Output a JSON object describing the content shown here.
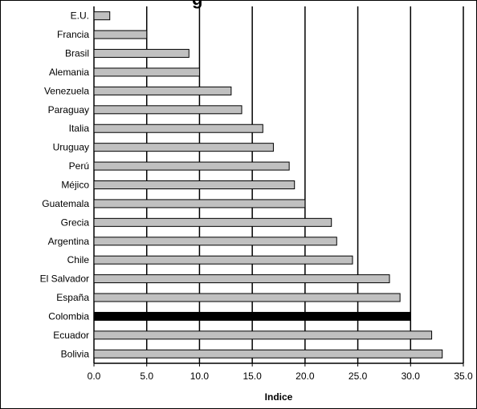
{
  "title_fragment": "g",
  "chart_data": {
    "type": "bar",
    "orientation": "horizontal",
    "categories": [
      "E.U.",
      "Francia",
      "Brasil",
      "Alemania",
      "Venezuela",
      "Paraguay",
      "Italia",
      "Uruguay",
      "Perú",
      "Méjico",
      "Guatemala",
      "Grecia",
      "Argentina",
      "Chile",
      "El Salvador",
      "España",
      "Colombia",
      "Ecuador",
      "Bolivia"
    ],
    "values": [
      1.5,
      5.0,
      9.0,
      10.0,
      13.0,
      14.0,
      16.0,
      17.0,
      18.5,
      19.0,
      20.0,
      22.5,
      23.0,
      24.5,
      28.0,
      29.0,
      30.0,
      32.0,
      33.0
    ],
    "highlight_category": "Colombia",
    "colors": {
      "default": "#c0c0c0",
      "highlight": "#000000",
      "outline": "#000000"
    },
    "xlim": [
      0,
      35
    ],
    "xticks": [
      "0.0",
      "5.0",
      "10.0",
      "15.0",
      "20.0",
      "25.0",
      "30.0",
      "35.0"
    ],
    "xlabel": "Indice",
    "ylabel": "",
    "grid": "vertical"
  }
}
